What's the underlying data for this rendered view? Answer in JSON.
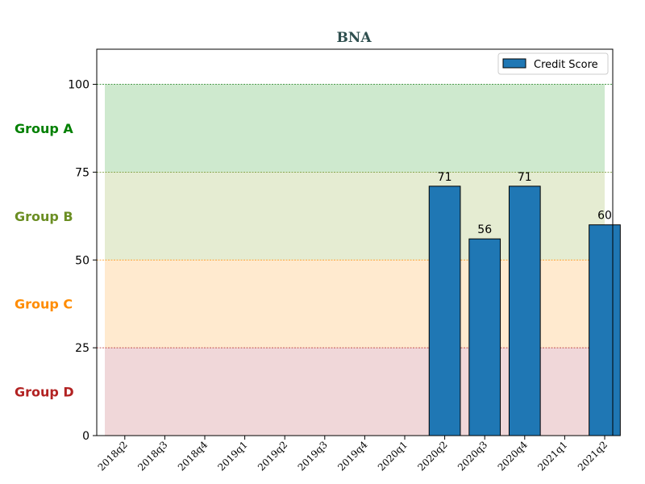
{
  "chart_data": {
    "type": "bar",
    "title": "BNA",
    "xlabel": "",
    "ylabel": "",
    "categories": [
      "2018q2",
      "2018q3",
      "2018q4",
      "2019q1",
      "2019q2",
      "2019q3",
      "2019q4",
      "2020q1",
      "2020q2",
      "2020q3",
      "2020q4",
      "2021q1",
      "2021q2"
    ],
    "series": [
      {
        "name": "Credit Score",
        "values": [
          null,
          null,
          null,
          null,
          null,
          null,
          null,
          null,
          71,
          56,
          71,
          null,
          60
        ],
        "color": "#1f77b4"
      }
    ],
    "ylim": [
      0,
      110
    ],
    "yticks": [
      0,
      25,
      50,
      75,
      100
    ],
    "legend_position": "top-right",
    "grid": false,
    "bands": [
      {
        "label": "Group A",
        "from": 75,
        "to": 100,
        "fill": "#2ca02c",
        "line": "#2e8b2e",
        "label_color": "#008000"
      },
      {
        "label": "Group B",
        "from": 50,
        "to": 75,
        "fill": "#8fae3b",
        "line": "#6b8e23",
        "label_color": "#6b8e23"
      },
      {
        "label": "Group C",
        "from": 25,
        "to": 50,
        "fill": "#ffa530",
        "line": "#ff8c00",
        "label_color": "#ff8c00"
      },
      {
        "label": "Group D",
        "from": 0,
        "to": 25,
        "fill": "#c0505a",
        "line": "#b22222",
        "label_color": "#b22222"
      }
    ]
  }
}
